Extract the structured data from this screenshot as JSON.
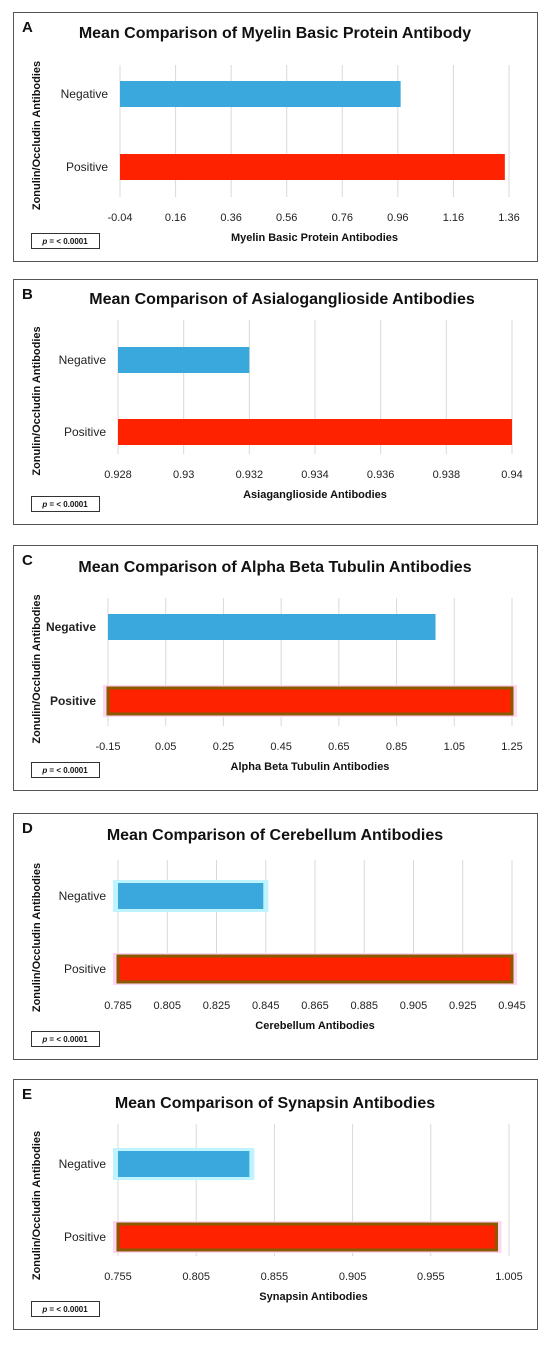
{
  "chart_data": [
    {
      "type": "bar",
      "orientation": "horizontal",
      "panel": "A",
      "title": "Mean Comparison of Myelin Basic Protein Antibody",
      "xlabel": "Myelin Basic Protein Antibodies",
      "ylabel": "Zonulin/Occludin Antibodies",
      "categories": [
        "Negative",
        "Positive"
      ],
      "values": [
        0.97,
        1.345
      ],
      "colors": [
        "#3ba8dd",
        "#ff2200"
      ],
      "xlim": [
        -0.04,
        1.36
      ],
      "xticks": [
        "-0.04",
        "0.16",
        "0.36",
        "0.56",
        "0.76",
        "0.96",
        "1.16",
        "1.36"
      ],
      "grid": true,
      "annotation": {
        "p": "p",
        "rest": " = < 0.0001"
      }
    },
    {
      "type": "bar",
      "orientation": "horizontal",
      "panel": "B",
      "title": "Mean Comparison of Asialoganglioside Antibodies",
      "xlabel": "Asiaganglioside Antibodies",
      "ylabel": "Zonulin/Occludin Antibodies",
      "categories": [
        "Negative",
        "Positive"
      ],
      "values": [
        0.932,
        0.94
      ],
      "colors": [
        "#3ba8dd",
        "#ff2200"
      ],
      "xlim": [
        0.928,
        0.94
      ],
      "xticks": [
        "0.928",
        "0.93",
        "0.932",
        "0.934",
        "0.936",
        "0.938",
        "0.94"
      ],
      "grid": true,
      "annotation": {
        "p": "p",
        "rest": " = < 0.0001"
      }
    },
    {
      "type": "bar",
      "orientation": "horizontal",
      "panel": "C",
      "title": "Mean Comparison of Alpha Beta Tubulin Antibodies",
      "xlabel": "Alpha Beta Tubulin Antibodies",
      "ylabel": "Zonulin/Occludin Antibodies",
      "categories": [
        "Negative",
        "Positive"
      ],
      "values": [
        0.985,
        1.25
      ],
      "colors": [
        "#3ba8dd",
        "#ff2200"
      ],
      "xlim": [
        -0.15,
        1.25
      ],
      "xticks": [
        "-0.15",
        "0.05",
        "0.25",
        "0.45",
        "0.65",
        "0.85",
        "1.05",
        "1.25"
      ],
      "grid": true,
      "annotation": {
        "p": "p",
        "rest": " = < 0.0001"
      }
    },
    {
      "type": "bar",
      "orientation": "horizontal",
      "panel": "D",
      "title": "Mean Comparison of Cerebellum Antibodies",
      "xlabel": "Cerebellum Antibodies",
      "ylabel": "Zonulin/Occludin Antibodies",
      "categories": [
        "Negative",
        "Positive"
      ],
      "values": [
        0.844,
        0.945
      ],
      "colors": [
        "#3ba8dd",
        "#ff2200"
      ],
      "xlim": [
        0.785,
        0.945
      ],
      "xticks": [
        "0.785",
        "0.805",
        "0.825",
        "0.845",
        "0.865",
        "0.885",
        "0.905",
        "0.925",
        "0.945"
      ],
      "grid": true,
      "annotation": {
        "p": "p",
        "rest": " = < 0.0001"
      }
    },
    {
      "type": "bar",
      "orientation": "horizontal",
      "panel": "E",
      "title": "Mean Comparison of Synapsin Antibodies",
      "xlabel": "Synapsin Antibodies",
      "ylabel": "Zonulin/Occludin Antibodies",
      "categories": [
        "Negative",
        "Positive"
      ],
      "values": [
        0.839,
        0.997
      ],
      "colors": [
        "#3ba8dd",
        "#ff2200"
      ],
      "xlim": [
        0.755,
        1.005
      ],
      "xticks": [
        "0.755",
        "0.805",
        "0.855",
        "0.905",
        "0.955",
        "1.005"
      ],
      "grid": true,
      "annotation": {
        "p": "p",
        "rest": " = < 0.0001"
      }
    }
  ]
}
